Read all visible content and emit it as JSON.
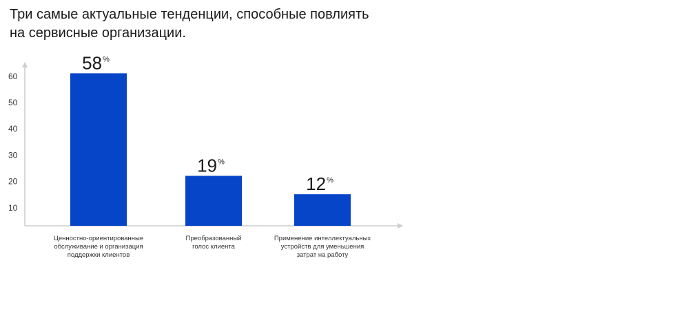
{
  "title_lines": [
    "Три самые актуальные тенденции, способные повлиять",
    "на сервисные организации."
  ],
  "chart_data": {
    "type": "bar",
    "categories": [
      [
        "Ценностно-ориентированные",
        "обслуживание и организация",
        "поддержки клиентов"
      ],
      [
        "Преобразованный",
        "голос клиента"
      ],
      [
        "Применение интеллектуальных",
        "устройств для уменьшения",
        "затрат на работу"
      ]
    ],
    "values": [
      58,
      19,
      12
    ],
    "value_suffix": "%",
    "yticks": [
      10,
      20,
      30,
      40,
      50,
      60
    ],
    "ylim": [
      0,
      65
    ],
    "bar_color": "#0645c8",
    "axis_color": "#cccccc",
    "grid": false,
    "legend": "none"
  }
}
